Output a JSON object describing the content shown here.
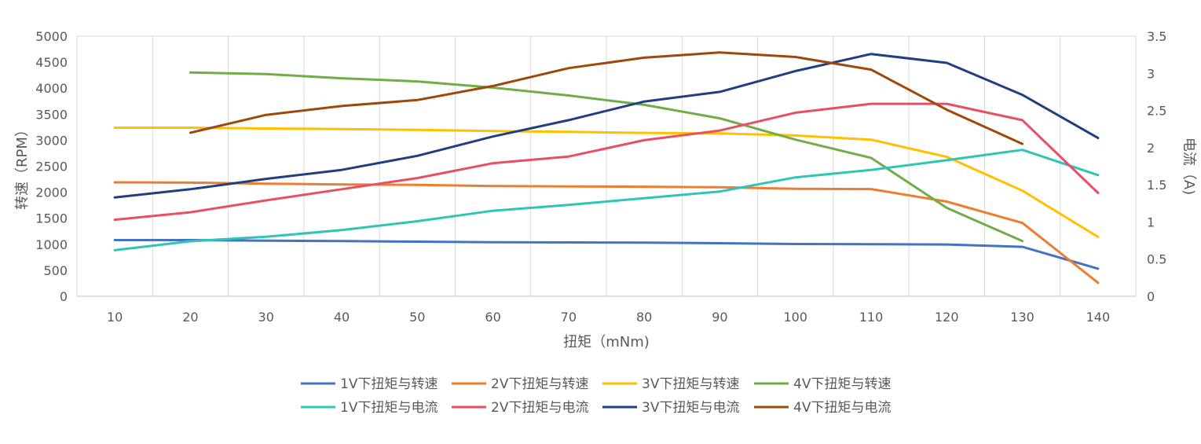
{
  "chart_data": {
    "type": "line",
    "x": [
      10,
      20,
      30,
      40,
      50,
      60,
      70,
      80,
      90,
      100,
      110,
      120,
      130,
      140
    ],
    "xlabel": "扭矩（mNm)",
    "ylabel_left": "转速（RPM）",
    "ylabel_right": "电流（A)",
    "ylim_left": [
      0,
      5000
    ],
    "ylim_right": [
      0,
      3.5
    ],
    "yticks_left": [
      "0",
      "500",
      "1000",
      "1500",
      "2000",
      "2500",
      "3000",
      "3500",
      "4000",
      "4500",
      "5000"
    ],
    "yticks_right": [
      "0",
      "0.5",
      "1",
      "1.5",
      "2",
      "2.5",
      "3",
      "3.5"
    ],
    "xticks": [
      "10",
      "20",
      "30",
      "40",
      "50",
      "60",
      "70",
      "80",
      "90",
      "100",
      "110",
      "120",
      "130",
      "140"
    ],
    "grid": "vertical",
    "legend_position": "bottom",
    "series": [
      {
        "name": "1V下扭矩与转速",
        "axis": "left",
        "color": "#4472C4",
        "x": [
          10,
          20,
          30,
          40,
          50,
          60,
          70,
          80,
          90,
          100,
          110,
          120,
          130,
          140
        ],
        "values": [
          1080,
          1080,
          1070,
          1060,
          1050,
          1040,
          1035,
          1030,
          1020,
          1005,
          1000,
          995,
          950,
          530
        ]
      },
      {
        "name": "2V下扭矩与转速",
        "axis": "left",
        "color": "#ED7D31",
        "x": [
          10,
          20,
          30,
          40,
          50,
          60,
          70,
          80,
          90,
          100,
          110,
          120,
          130,
          140
        ],
        "values": [
          2190,
          2185,
          2165,
          2150,
          2140,
          2120,
          2110,
          2105,
          2095,
          2065,
          2060,
          1820,
          1410,
          260
        ]
      },
      {
        "name": "3V下扭矩与转速",
        "axis": "left",
        "color": "#FFC000",
        "x": [
          10,
          20,
          30,
          40,
          50,
          60,
          70,
          80,
          90,
          100,
          110,
          120,
          130,
          140
        ],
        "values": [
          3240,
          3240,
          3225,
          3215,
          3200,
          3175,
          3160,
          3140,
          3130,
          3090,
          3010,
          2680,
          2030,
          1140
        ]
      },
      {
        "name": "4V下扭矩与转速",
        "axis": "left",
        "color": "#70AD47",
        "x": [
          20,
          30,
          40,
          50,
          60,
          70,
          80,
          90,
          100,
          110,
          120,
          130
        ],
        "values": [
          4300,
          4270,
          4190,
          4130,
          4010,
          3860,
          3680,
          3420,
          3010,
          2660,
          1700,
          1060
        ]
      },
      {
        "name": "1V下扭矩与电流",
        "axis": "right",
        "color": "#2EC4B6",
        "x": [
          10,
          20,
          30,
          40,
          50,
          60,
          70,
          80,
          90,
          100,
          110,
          120,
          130,
          140
        ],
        "values": [
          0.62,
          0.74,
          0.8,
          0.89,
          1.01,
          1.15,
          1.23,
          1.32,
          1.41,
          1.6,
          1.7,
          1.83,
          1.97,
          1.63
        ]
      },
      {
        "name": "2V下扭矩与电流",
        "axis": "right",
        "color": "#E94F64",
        "x": [
          10,
          20,
          30,
          40,
          50,
          60,
          70,
          80,
          90,
          100,
          110,
          120,
          130,
          140
        ],
        "values": [
          1.03,
          1.13,
          1.29,
          1.44,
          1.59,
          1.79,
          1.88,
          2.1,
          2.23,
          2.47,
          2.59,
          2.59,
          2.37,
          1.39
        ]
      },
      {
        "name": "3V下扭矩与电流",
        "axis": "right",
        "color": "#203F80",
        "x": [
          10,
          20,
          30,
          40,
          50,
          60,
          70,
          80,
          90,
          100,
          110,
          120,
          130,
          140
        ],
        "values": [
          1.33,
          1.44,
          1.58,
          1.7,
          1.89,
          2.15,
          2.37,
          2.62,
          2.75,
          3.03,
          3.26,
          3.14,
          2.71,
          2.13
        ]
      },
      {
        "name": "4V下扭矩与电流",
        "axis": "right",
        "color": "#9E480E",
        "x": [
          20,
          30,
          40,
          50,
          60,
          70,
          80,
          90,
          100,
          110,
          120,
          130
        ],
        "values": [
          2.2,
          2.44,
          2.56,
          2.64,
          2.83,
          3.07,
          3.21,
          3.28,
          3.22,
          3.05,
          2.51,
          2.05
        ]
      }
    ]
  }
}
